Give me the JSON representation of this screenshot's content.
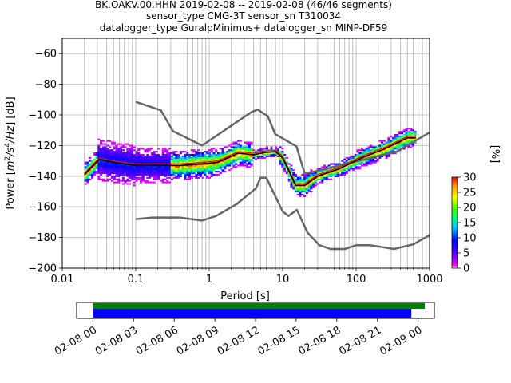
{
  "title": {
    "line1": "BK.OAKV.00.HHN   2019-02-08 -- 2019-02-08  (46/46 segments)",
    "line2": "sensor_type CMG-3T sensor_sn T310034",
    "line3": "datalogger_type GuralpMinimus+ datalogger_sn MINP-DF59"
  },
  "chart_data": {
    "type": "heatmap",
    "xlabel": "Period [s]",
    "ylabel_parts": [
      "Power [",
      "m",
      "2",
      "/",
      "s",
      "4",
      "/",
      "Hz",
      "] [dB]"
    ],
    "x_scale": "log",
    "xlim": [
      0.01,
      1000
    ],
    "ylim": [
      -200,
      -50
    ],
    "x_ticks": [
      {
        "v": 0.01,
        "label": "0.01"
      },
      {
        "v": 0.1,
        "label": "0.1"
      },
      {
        "v": 1,
        "label": "1"
      },
      {
        "v": 10,
        "label": "10"
      },
      {
        "v": 100,
        "label": "100"
      },
      {
        "v": 1000,
        "label": "1000"
      }
    ],
    "y_ticks": [
      {
        "v": -60,
        "label": "−60"
      },
      {
        "v": -80,
        "label": "−80"
      },
      {
        "v": -100,
        "label": "−100"
      },
      {
        "v": -120,
        "label": "−120"
      },
      {
        "v": -140,
        "label": "−140"
      },
      {
        "v": -160,
        "label": "−160"
      },
      {
        "v": -180,
        "label": "−180"
      },
      {
        "v": -200,
        "label": "−200"
      }
    ],
    "grid": true,
    "colorbar": {
      "label": "[%]",
      "range": [
        0,
        30
      ],
      "ticks": [
        {
          "v": 0,
          "label": "0"
        },
        {
          "v": 5,
          "label": "5"
        },
        {
          "v": 10,
          "label": "10"
        },
        {
          "v": 15,
          "label": "15"
        },
        {
          "v": 20,
          "label": "20"
        },
        {
          "v": 25,
          "label": "25"
        },
        {
          "v": 30,
          "label": "30"
        }
      ]
    },
    "high_noise_model": {
      "color": "#666666",
      "points": [
        [
          0.1,
          -91.5
        ],
        [
          0.22,
          -97
        ],
        [
          0.32,
          -110.5
        ],
        [
          0.8,
          -120
        ],
        [
          3.8,
          -98
        ],
        [
          4.6,
          -96.5
        ],
        [
          6.3,
          -101
        ],
        [
          7.9,
          -112.5
        ],
        [
          15.4,
          -120.5
        ],
        [
          20,
          -138.5
        ],
        [
          354,
          -124
        ],
        [
          1000,
          -111.5
        ]
      ]
    },
    "low_noise_model": {
      "color": "#666666",
      "points": [
        [
          0.1,
          -168
        ],
        [
          0.17,
          -167
        ],
        [
          0.4,
          -167
        ],
        [
          0.8,
          -169
        ],
        [
          1.24,
          -166
        ],
        [
          2.4,
          -158
        ],
        [
          4.3,
          -148
        ],
        [
          5.0,
          -141
        ],
        [
          6.0,
          -141
        ],
        [
          10,
          -163
        ],
        [
          12,
          -166
        ],
        [
          15.6,
          -162
        ],
        [
          21.9,
          -177
        ],
        [
          31.6,
          -185
        ],
        [
          45,
          -187.5
        ],
        [
          70,
          -187.5
        ],
        [
          101,
          -185
        ],
        [
          154,
          -185
        ],
        [
          328,
          -187.5
        ],
        [
          600,
          -184.5
        ],
        [
          1000,
          -178.5
        ]
      ]
    },
    "mean_psd": {
      "color": "#000000",
      "points": [
        [
          0.02,
          -139
        ],
        [
          0.032,
          -129
        ],
        [
          0.05,
          -131
        ],
        [
          0.1,
          -133
        ],
        [
          0.2,
          -133
        ],
        [
          0.4,
          -133
        ],
        [
          0.8,
          -132
        ],
        [
          1.3,
          -131
        ],
        [
          2.5,
          -125
        ],
        [
          4,
          -126
        ],
        [
          6,
          -124.5
        ],
        [
          8,
          -124
        ],
        [
          10,
          -128
        ],
        [
          12,
          -136
        ],
        [
          15,
          -146
        ],
        [
          20,
          -146
        ],
        [
          30,
          -140
        ],
        [
          60,
          -135
        ],
        [
          120,
          -128
        ],
        [
          250,
          -122
        ],
        [
          500,
          -115
        ],
        [
          650,
          -115
        ]
      ]
    },
    "mode_psd": {
      "color": "#ff0000",
      "points": [
        [
          0.02,
          -138
        ],
        [
          0.032,
          -128
        ],
        [
          0.05,
          -130
        ],
        [
          0.1,
          -132
        ],
        [
          0.2,
          -132
        ],
        [
          0.4,
          -132
        ],
        [
          0.8,
          -131
        ],
        [
          1.3,
          -130
        ],
        [
          2.5,
          -124
        ],
        [
          4,
          -125
        ],
        [
          6,
          -123.5
        ],
        [
          8,
          -123
        ],
        [
          10,
          -127
        ],
        [
          12,
          -135
        ],
        [
          15,
          -145
        ],
        [
          20,
          -145
        ],
        [
          30,
          -139
        ],
        [
          60,
          -134
        ],
        [
          120,
          -127
        ],
        [
          250,
          -121
        ],
        [
          500,
          -114
        ],
        [
          650,
          -114
        ]
      ]
    },
    "coverage": {
      "ticks": [
        {
          "label": "02-08 00",
          "h": 0
        },
        {
          "label": "02-08 03",
          "h": 3
        },
        {
          "label": "02-08 06",
          "h": 6
        },
        {
          "label": "02-08 09",
          "h": 9
        },
        {
          "label": "02-08 12",
          "h": 12
        },
        {
          "label": "02-08 15",
          "h": 15
        },
        {
          "label": "02-08 18",
          "h": 18
        },
        {
          "label": "02-08 21",
          "h": 21
        },
        {
          "label": "02-09 00",
          "h": 24
        }
      ],
      "range_hours": [
        -1.2,
        25.2
      ],
      "data_bar": {
        "color": "#008000",
        "start_h": 0,
        "end_h": 24.5
      },
      "used_bar": {
        "color": "#0000ff",
        "start_h": 0,
        "end_h": 23.5
      }
    }
  }
}
